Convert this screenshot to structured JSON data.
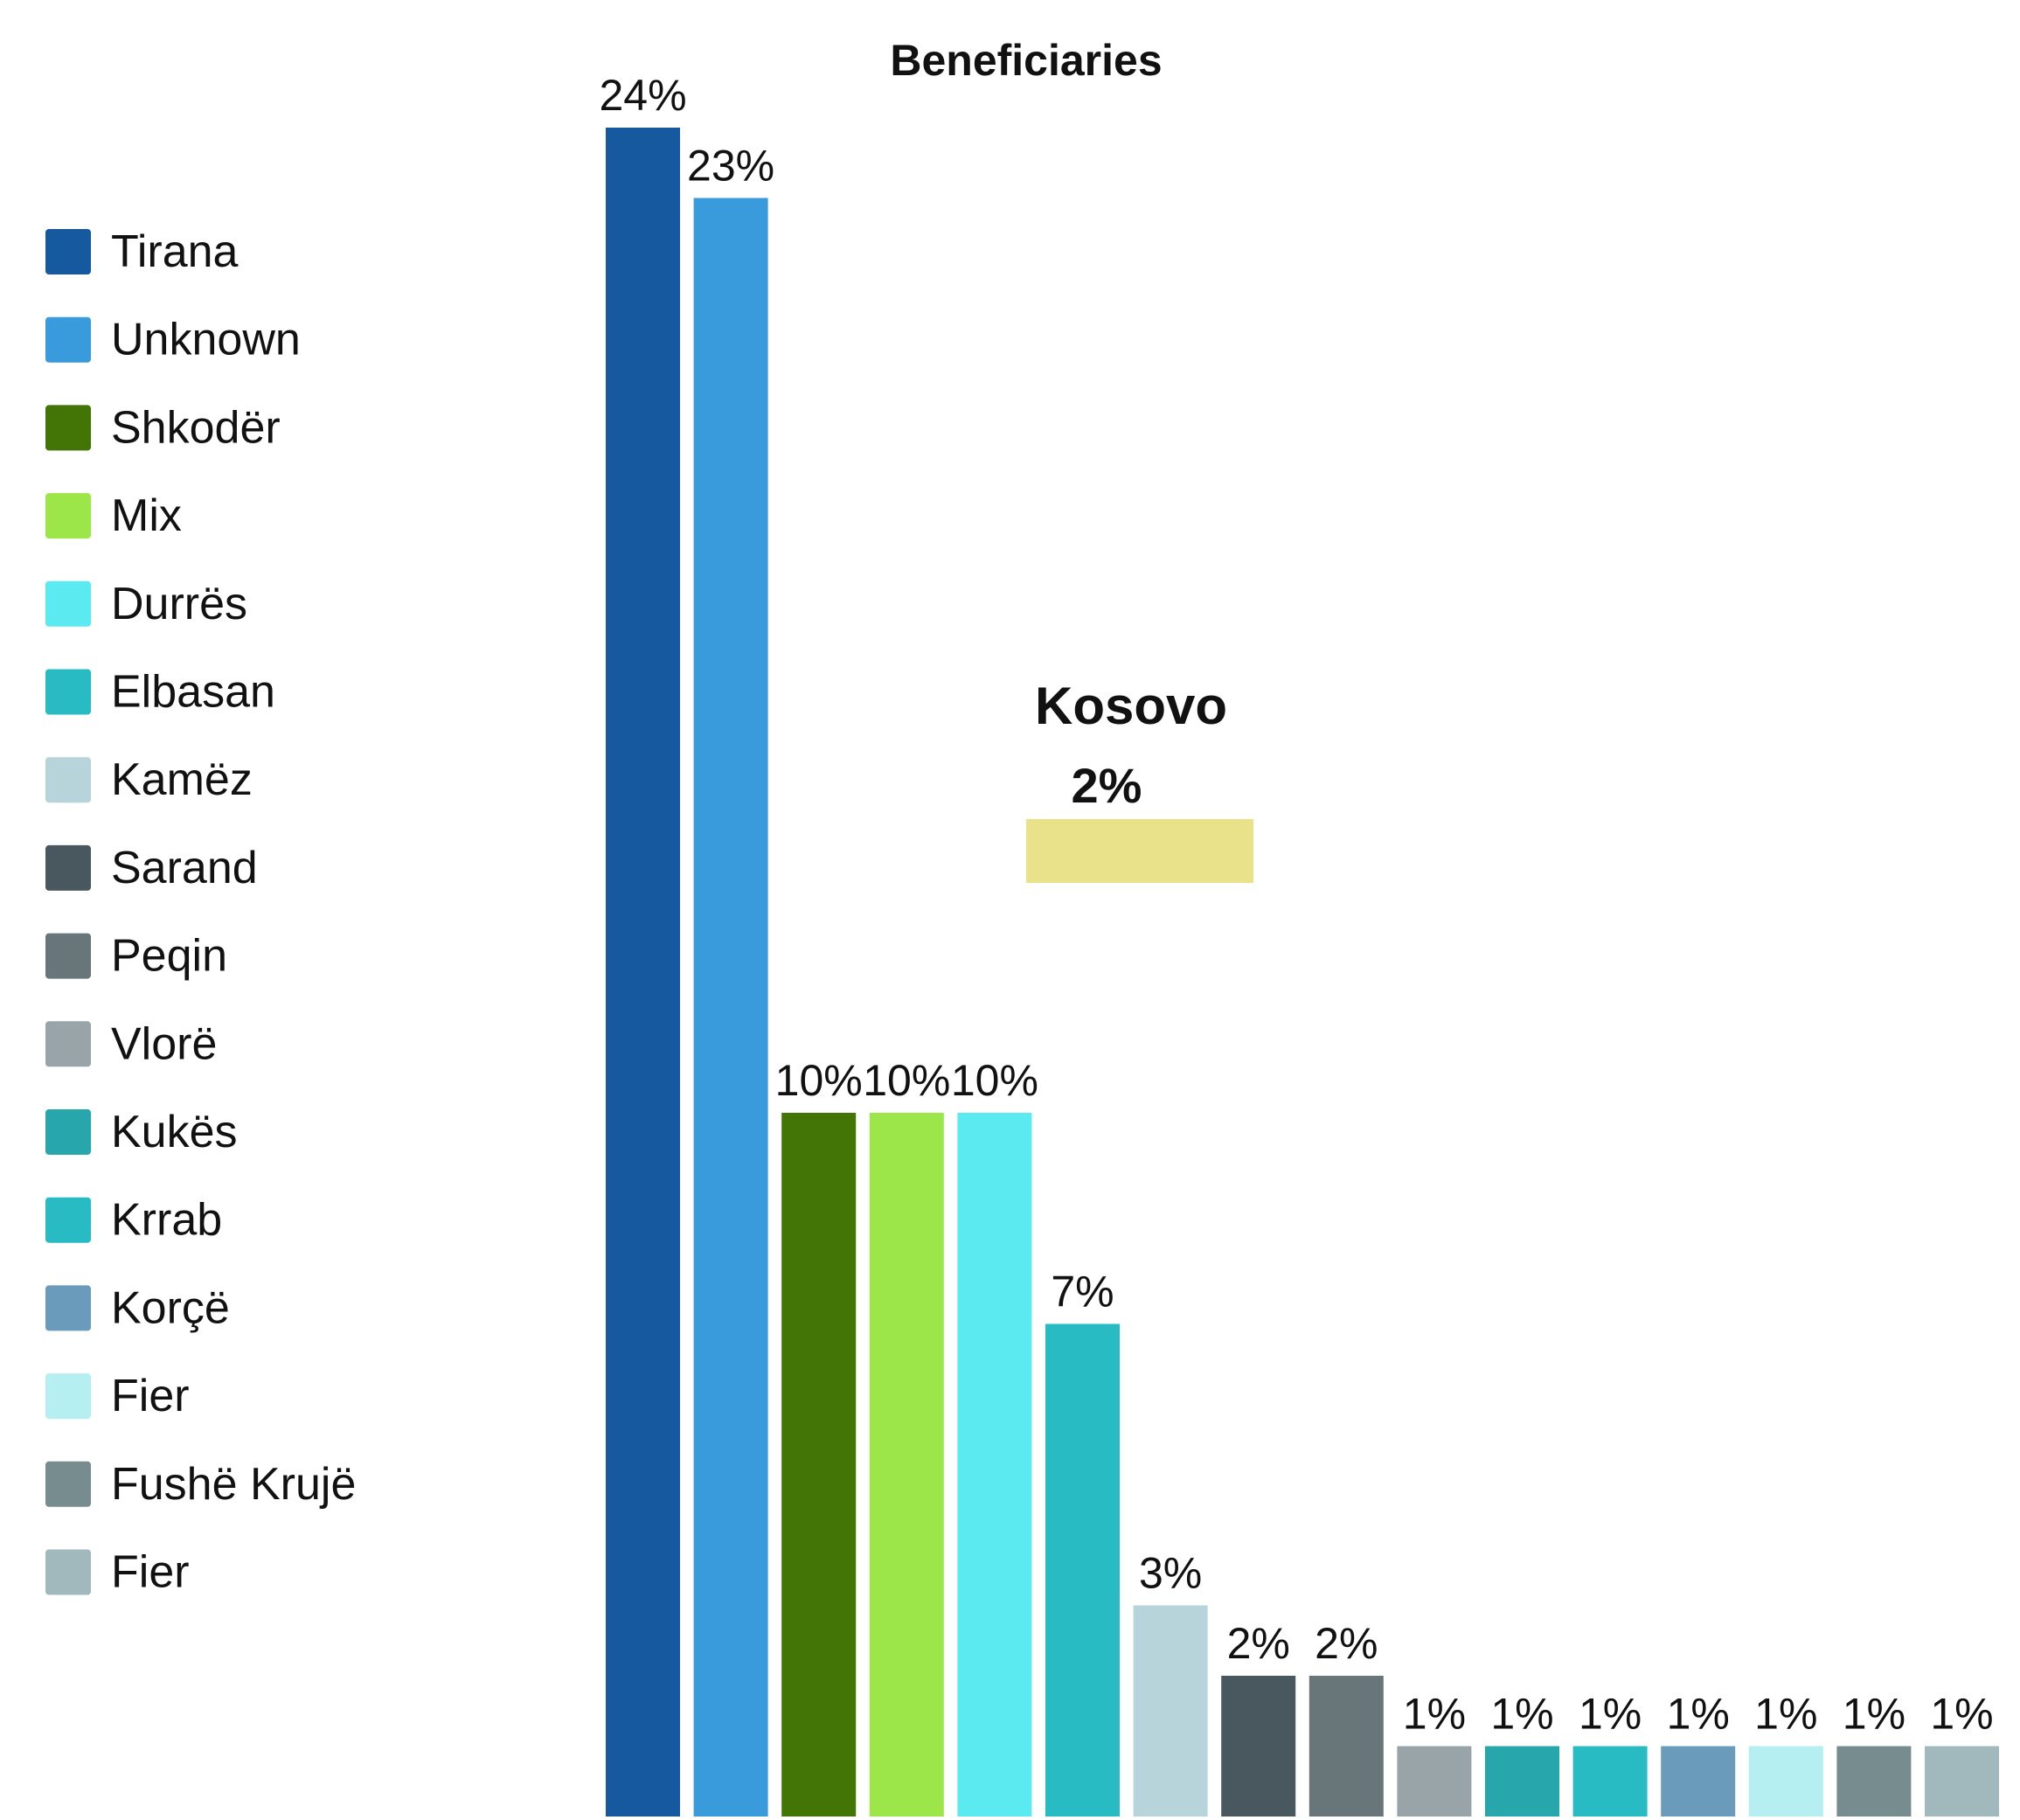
{
  "chart_data": {
    "type": "bar",
    "title": "Beneficiaries",
    "xlabel": "",
    "ylabel": "",
    "ylim": [
      0,
      24
    ],
    "grid": false,
    "legend": "left",
    "categories": [
      "Tirana",
      "Unknown",
      "Shkodër",
      "Mix",
      "Durrës",
      "Elbasan",
      "Kamëz",
      "Sarand",
      "Peqin",
      "Vlorë",
      "Kukës",
      "Krrab",
      "Korçë",
      "Fier",
      "Fushë Krujë",
      "Fier"
    ],
    "values": [
      24,
      23,
      10,
      10,
      10,
      7,
      3,
      2,
      2,
      1,
      1,
      1,
      1,
      1,
      1,
      1
    ],
    "labels": [
      "24%",
      "23%",
      "10%",
      "10%",
      "10%",
      "7%",
      "3%",
      "2%",
      "2%",
      "1%",
      "1%",
      "1%",
      "1%",
      "1%",
      "1%",
      "1%"
    ],
    "colors": [
      "#17599f",
      "#399bdb",
      "#427505",
      "#9ce64a",
      "#5aeaf0",
      "#29bbc3",
      "#b6d4d9",
      "#49575e",
      "#697679",
      "#99a4a8",
      "#27a7ab",
      "#29bbc3",
      "#6b9bba",
      "#b5eff2",
      "#768c8f",
      "#a1b8bc"
    ],
    "annotation": {
      "title": "Kosovo",
      "label": "2%",
      "value": 2,
      "color": "#e9e28a"
    }
  }
}
